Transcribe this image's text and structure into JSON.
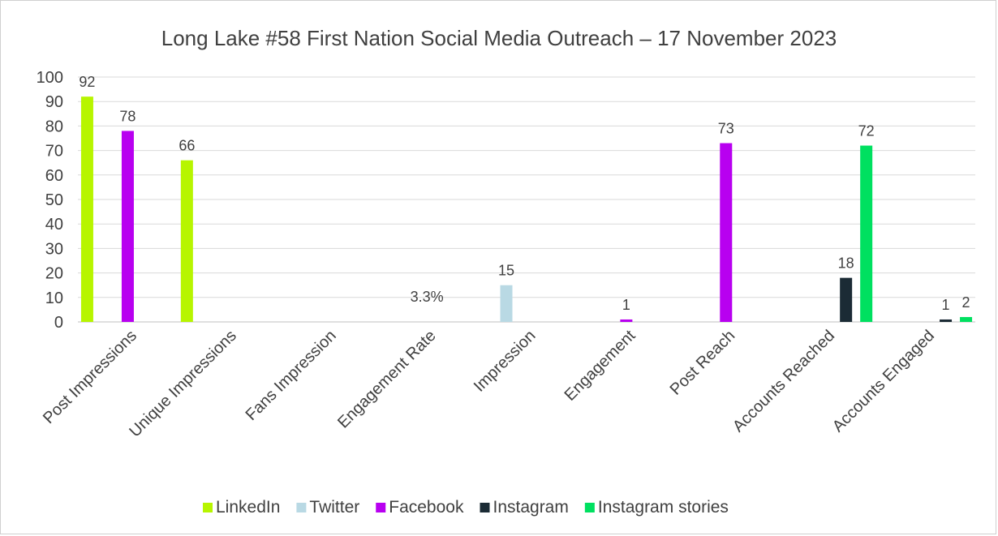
{
  "chart_data": {
    "type": "bar",
    "title": "Long Lake #58 First Nation Social Media Outreach – 17 November 2023",
    "xlabel": "",
    "ylabel": "",
    "ylim": [
      0,
      100
    ],
    "yticks": [
      0,
      10,
      20,
      30,
      40,
      50,
      60,
      70,
      80,
      90,
      100
    ],
    "grid": true,
    "legend_position": "bottom",
    "categories": [
      "Post Impressions",
      "Unique Impressions",
      "Fans Impression",
      "Engagement Rate",
      "Impression",
      "Engagement",
      "Post Reach",
      "Accounts Reached",
      "Accounts Engaged"
    ],
    "series": [
      {
        "name": "LinkedIn",
        "color": "#b7f500",
        "values": [
          92,
          66,
          null,
          null,
          null,
          null,
          null,
          null,
          null
        ]
      },
      {
        "name": "Twitter",
        "color": "#b9d9e4",
        "values": [
          null,
          null,
          null,
          null,
          15,
          null,
          null,
          null,
          null
        ]
      },
      {
        "name": "Facebook",
        "color": "#b800f0",
        "values": [
          78,
          null,
          null,
          null,
          null,
          1,
          73,
          null,
          null
        ]
      },
      {
        "name": "Instagram",
        "color": "#1b2b35",
        "values": [
          null,
          null,
          null,
          null,
          null,
          null,
          null,
          18,
          1
        ]
      },
      {
        "name": "Instagram stories",
        "color": "#00e060",
        "values": [
          null,
          null,
          null,
          null,
          null,
          null,
          null,
          72,
          2
        ]
      }
    ],
    "extra_labels": [
      {
        "category": "Engagement Rate",
        "text": "3.3%",
        "value": 3.3
      }
    ]
  }
}
